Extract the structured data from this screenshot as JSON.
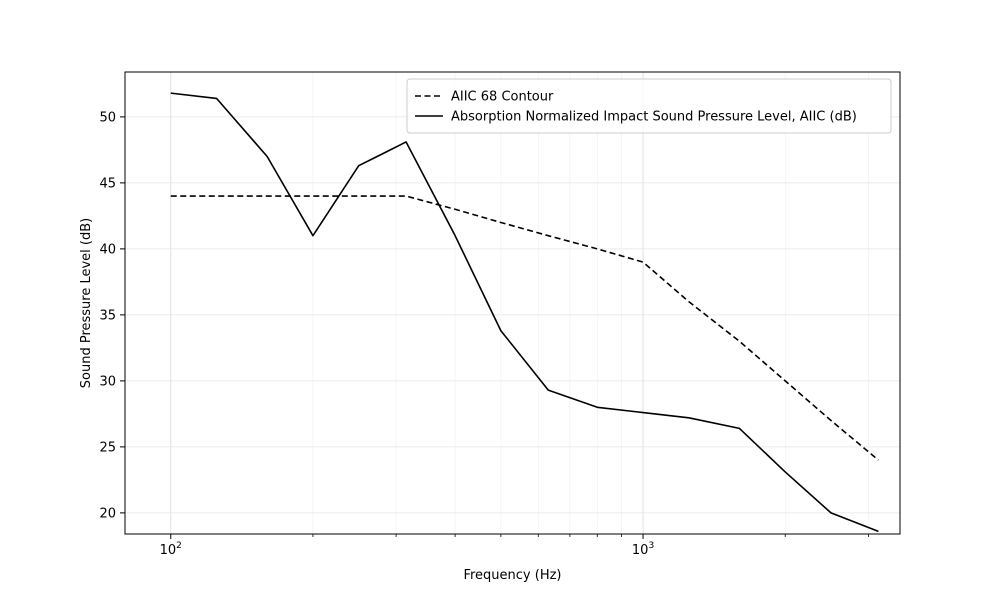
{
  "chart_data": {
    "type": "line",
    "title": "",
    "xlabel": "Frequency (Hz)",
    "ylabel": "Sound Pressure Level (dB)",
    "x_scale": "log",
    "xlim": [
      80,
      3500
    ],
    "ylim": [
      18.4,
      53.4
    ],
    "grid": true,
    "legend_position": "top-right",
    "x_tick_labels": [
      {
        "value": 100,
        "base": "10",
        "exp": "2"
      },
      {
        "value": 1000,
        "base": "10",
        "exp": "3"
      }
    ],
    "x_minor_ticks": [
      200,
      300,
      400,
      500,
      600,
      700,
      800,
      900,
      2000,
      3000
    ],
    "y_ticks": [
      20,
      25,
      30,
      35,
      40,
      45,
      50
    ],
    "x": [
      100,
      125,
      160,
      200,
      250,
      315,
      400,
      500,
      630,
      800,
      1000,
      1250,
      1600,
      2000,
      2500,
      3150
    ],
    "series": [
      {
        "name": "AIIC 68 Contour",
        "style": "dashed",
        "color": "#000000",
        "values": [
          44,
          44,
          44,
          44,
          44,
          44,
          43,
          42,
          41,
          40,
          39,
          36,
          33,
          30,
          27,
          24
        ]
      },
      {
        "name": "Absorption Normalized Impact Sound Pressure Level, AIIC (dB)",
        "style": "solid",
        "color": "#000000",
        "values": [
          51.8,
          51.4,
          47.0,
          41.0,
          46.3,
          48.1,
          41.0,
          33.8,
          29.3,
          28.0,
          27.6,
          27.2,
          26.4,
          23.1,
          20.0,
          18.6
        ]
      }
    ]
  }
}
